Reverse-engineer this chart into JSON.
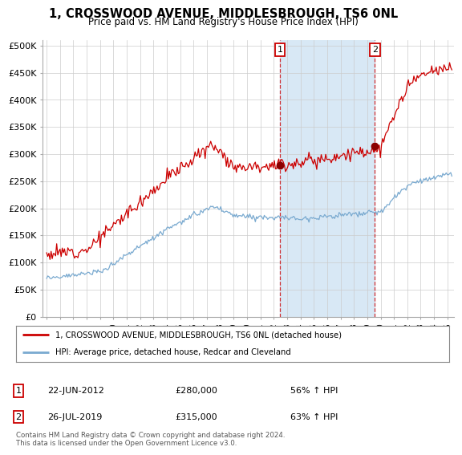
{
  "title": "1, CROSSWOOD AVENUE, MIDDLESBROUGH, TS6 0NL",
  "subtitle": "Price paid vs. HM Land Registry's House Price Index (HPI)",
  "ylabel_ticks": [
    "£0",
    "£50K",
    "£100K",
    "£150K",
    "£200K",
    "£250K",
    "£300K",
    "£350K",
    "£400K",
    "£450K",
    "£500K"
  ],
  "ytick_values": [
    0,
    50000,
    100000,
    150000,
    200000,
    250000,
    300000,
    350000,
    400000,
    450000,
    500000
  ],
  "ylim": [
    0,
    510000
  ],
  "xlim_start": 1994.7,
  "xlim_end": 2025.5,
  "background_color": "#ffffff",
  "grid_color": "#cccccc",
  "span_color": "#d8e8f5",
  "red_line_color": "#cc0000",
  "blue_line_color": "#7aaad0",
  "marker1_x": 2012.47,
  "marker1_y": 280000,
  "marker2_x": 2019.57,
  "marker2_y": 315000,
  "marker1_label": "1",
  "marker2_label": "2",
  "annotation1_date": "22-JUN-2012",
  "annotation1_price": "£280,000",
  "annotation1_hpi": "56% ↑ HPI",
  "annotation2_date": "26-JUL-2019",
  "annotation2_price": "£315,000",
  "annotation2_hpi": "63% ↑ HPI",
  "legend_label_red": "1, CROSSWOOD AVENUE, MIDDLESBROUGH, TS6 0NL (detached house)",
  "legend_label_blue": "HPI: Average price, detached house, Redcar and Cleveland",
  "footer_text": "Contains HM Land Registry data © Crown copyright and database right 2024.\nThis data is licensed under the Open Government Licence v3.0.",
  "xtick_years": [
    1995,
    1996,
    1997,
    1998,
    1999,
    2000,
    2001,
    2002,
    2003,
    2004,
    2005,
    2006,
    2007,
    2008,
    2009,
    2010,
    2011,
    2012,
    2013,
    2014,
    2015,
    2016,
    2017,
    2018,
    2019,
    2020,
    2021,
    2022,
    2023,
    2024,
    2025
  ]
}
